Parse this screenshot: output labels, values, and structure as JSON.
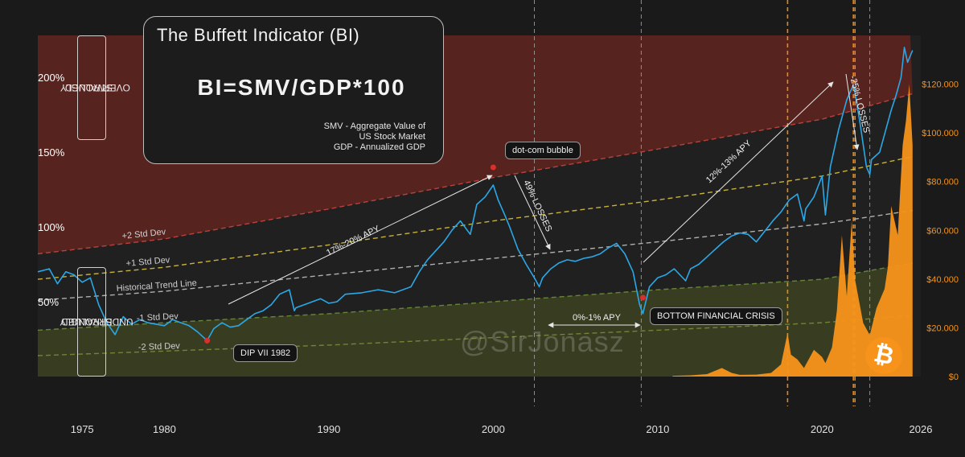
{
  "panel": {
    "title": "The Buffett Indicator (BI)",
    "formula": "BI=SMV/GDP*100",
    "definitions": [
      "SMV - Aggregate Value of",
      "US Stock Market",
      "GDP - Annualized GDP"
    ]
  },
  "zones": {
    "overvalued": [
      "STRONGLY",
      "OVERVALUED"
    ],
    "undervalued": [
      "STRONGLY",
      "UNDERVALUED"
    ]
  },
  "annotations": {
    "dotcom": "dot-com bubble",
    "dip1982": "DIP VII 1982",
    "bottom_crisis": "BOTTOM FINANCIAL CRISIS",
    "apy_80s_90s": "17%-20% APY",
    "losses_dotcom": "49% LOSSES",
    "apy_flat": "0%-1% APY",
    "apy_post_crisis": "12%-13% APY",
    "losses_2022": "-25% LOSSES"
  },
  "watermark": "@SirJonasz",
  "colors": {
    "background": "#1a1a1a",
    "overvalued_zone": "#5a2420",
    "undervalued_zone": "#3a3f22",
    "bi_line": "#2aa8e6",
    "btc_area": "#f7931a",
    "plus2": "#c8453f",
    "plus1": "#d9c23a",
    "trend": "#bfbfbf",
    "minus1": "#6a8f3a",
    "minus2": "#7a8a3a"
  },
  "chart_data": {
    "type": "line",
    "x_ticks": [
      "1975",
      "1980",
      "1990",
      "2000",
      "2010",
      "2020",
      "2026"
    ],
    "y_left_ticks": [
      "50%",
      "100%",
      "150%",
      "200%"
    ],
    "y_right_ticks": [
      "$0",
      "$20.000",
      "$40.000",
      "$60.000",
      "$80.000",
      "$100.000",
      "$120.000"
    ],
    "xlim": [
      1972.3,
      2026
    ],
    "ylim_left": [
      0,
      228
    ],
    "ylim_right": [
      0,
      140000
    ],
    "bands": [
      {
        "name": "+2 Std Dev",
        "values": [
          [
            1972.3,
            82
          ],
          [
            1980,
            92
          ],
          [
            1990,
            112
          ],
          [
            2000,
            133
          ],
          [
            2010,
            152
          ],
          [
            2020,
            172
          ],
          [
            2025.5,
            189
          ]
        ]
      },
      {
        "name": "+1 Std Dev",
        "values": [
          [
            1972.3,
            65
          ],
          [
            1980,
            73
          ],
          [
            1990,
            88
          ],
          [
            2000,
            104
          ],
          [
            2010,
            118
          ],
          [
            2020,
            134
          ],
          [
            2025.5,
            147
          ]
        ]
      },
      {
        "name": "Historical Trend Line",
        "values": [
          [
            1972.3,
            51
          ],
          [
            1980,
            57
          ],
          [
            1990,
            68
          ],
          [
            2000,
            79
          ],
          [
            2010,
            90
          ],
          [
            2020,
            102
          ],
          [
            2025.5,
            111
          ]
        ]
      },
      {
        "name": "-1 Std Dev",
        "values": [
          [
            1972.3,
            31
          ],
          [
            1980,
            36
          ],
          [
            1990,
            42
          ],
          [
            2000,
            50
          ],
          [
            2010,
            58
          ],
          [
            2020,
            65
          ],
          [
            2025.5,
            76
          ]
        ]
      },
      {
        "name": "-2 Std Dev",
        "values": [
          [
            1972.3,
            14
          ],
          [
            1980,
            17
          ],
          [
            1990,
            21
          ],
          [
            2000,
            26
          ],
          [
            2010,
            31
          ],
          [
            2020,
            36
          ],
          [
            2025.5,
            41
          ]
        ]
      }
    ],
    "series": [
      {
        "name": "",
        "axis": "left",
        "values": [
          [
            1972.3,
            70
          ],
          [
            1973,
            72
          ],
          [
            1973.5,
            62
          ],
          [
            1974,
            70
          ],
          [
            1974.5,
            68
          ],
          [
            1975,
            63
          ],
          [
            1975.5,
            66
          ],
          [
            1976,
            48
          ],
          [
            1976.5,
            36
          ],
          [
            1977,
            28
          ],
          [
            1977.5,
            40
          ],
          [
            1978,
            35
          ],
          [
            1978.5,
            38
          ],
          [
            1979,
            36
          ],
          [
            1979.5,
            35
          ],
          [
            1980,
            34
          ],
          [
            1980.5,
            38
          ],
          [
            1981,
            36
          ],
          [
            1981.5,
            34
          ],
          [
            1982,
            30
          ],
          [
            1982.6,
            24
          ],
          [
            1983,
            32
          ],
          [
            1983.5,
            36
          ],
          [
            1984,
            33
          ],
          [
            1984.5,
            34
          ],
          [
            1985,
            38
          ],
          [
            1985.5,
            42
          ],
          [
            1986,
            44
          ],
          [
            1986.5,
            48
          ],
          [
            1987,
            55
          ],
          [
            1987.6,
            58
          ],
          [
            1987.9,
            44
          ],
          [
            1988,
            46
          ],
          [
            1989,
            50
          ],
          [
            1989.5,
            52
          ],
          [
            1990,
            49
          ],
          [
            1990.5,
            50
          ],
          [
            1991,
            55
          ],
          [
            1992,
            56
          ],
          [
            1993,
            58
          ],
          [
            1994,
            56
          ],
          [
            1995,
            60
          ],
          [
            1995.5,
            70
          ],
          [
            1996,
            78
          ],
          [
            1997,
            90
          ],
          [
            1997.5,
            98
          ],
          [
            1998,
            104
          ],
          [
            1998.6,
            95
          ],
          [
            1999,
            115
          ],
          [
            1999.5,
            120
          ],
          [
            2000,
            128
          ],
          [
            2000.3,
            118
          ],
          [
            2000.7,
            108
          ],
          [
            2001,
            100
          ],
          [
            2001.5,
            85
          ],
          [
            2002,
            75
          ],
          [
            2002.5,
            66
          ],
          [
            2002.8,
            60
          ],
          [
            2003,
            66
          ],
          [
            2003.5,
            72
          ],
          [
            2004,
            76
          ],
          [
            2004.5,
            78
          ],
          [
            2005,
            77
          ],
          [
            2005.5,
            79
          ],
          [
            2006,
            80
          ],
          [
            2006.5,
            82
          ],
          [
            2007,
            86
          ],
          [
            2007.5,
            89
          ],
          [
            2008,
            82
          ],
          [
            2008.5,
            70
          ],
          [
            2008.9,
            48
          ],
          [
            2009.1,
            42
          ],
          [
            2009.5,
            60
          ],
          [
            2010,
            66
          ],
          [
            2010.5,
            68
          ],
          [
            2011,
            72
          ],
          [
            2011.7,
            64
          ],
          [
            2012,
            72
          ],
          [
            2012.5,
            75
          ],
          [
            2013,
            80
          ],
          [
            2014,
            90
          ],
          [
            2014.5,
            94
          ],
          [
            2015,
            96
          ],
          [
            2015.5,
            95
          ],
          [
            2016,
            90
          ],
          [
            2016.5,
            97
          ],
          [
            2017,
            104
          ],
          [
            2017.5,
            110
          ],
          [
            2018,
            118
          ],
          [
            2018.5,
            122
          ],
          [
            2018.9,
            104
          ],
          [
            2019,
            112
          ],
          [
            2019.5,
            120
          ],
          [
            2020,
            134
          ],
          [
            2020.2,
            108
          ],
          [
            2020.5,
            140
          ],
          [
            2021,
            165
          ],
          [
            2021.5,
            185
          ],
          [
            2021.9,
            195
          ],
          [
            2022,
            190
          ],
          [
            2022.3,
            170
          ],
          [
            2022.7,
            140
          ],
          [
            2022.9,
            135
          ],
          [
            2023,
            145
          ],
          [
            2023.5,
            150
          ],
          [
            2024,
            170
          ],
          [
            2024.2,
            178
          ],
          [
            2024.5,
            188
          ],
          [
            2024.8,
            200
          ],
          [
            2025,
            220
          ],
          [
            2025.2,
            210
          ],
          [
            2025.5,
            218
          ]
        ]
      },
      {
        "name": "",
        "axis": "right",
        "values": [
          [
            2010.9,
            300
          ],
          [
            2012,
            500
          ],
          [
            2013,
            1000
          ],
          [
            2013.9,
            3500
          ],
          [
            2014.5,
            1500
          ],
          [
            2015,
            700
          ],
          [
            2016,
            800
          ],
          [
            2016.9,
            1500
          ],
          [
            2017.5,
            5000
          ],
          [
            2017.9,
            18000
          ],
          [
            2018.1,
            9000
          ],
          [
            2018.5,
            7000
          ],
          [
            2018.9,
            3500
          ],
          [
            2019.5,
            11000
          ],
          [
            2020,
            8000
          ],
          [
            2020.2,
            5500
          ],
          [
            2020.6,
            12000
          ],
          [
            2020.9,
            27000
          ],
          [
            2021.2,
            58000
          ],
          [
            2021.5,
            33000
          ],
          [
            2021.8,
            64000
          ],
          [
            2022,
            40000
          ],
          [
            2022.5,
            22000
          ],
          [
            2022.9,
            17000
          ],
          [
            2023.3,
            28000
          ],
          [
            2023.8,
            36000
          ],
          [
            2024,
            45000
          ],
          [
            2024.2,
            70000
          ],
          [
            2024.6,
            58000
          ],
          [
            2024.9,
            95000
          ],
          [
            2025.1,
            105000
          ],
          [
            2025.3,
            120000
          ],
          [
            2025.5,
            95000
          ]
        ]
      }
    ],
    "vertical_markers": [
      {
        "x": 2002.5,
        "style": "dashed",
        "color": "#9a9a9a"
      },
      {
        "x": 2009.0,
        "style": "dashed",
        "color": "#9a9a9a"
      },
      {
        "x": 2017.9,
        "style": "dashed",
        "color": "#f7931a"
      },
      {
        "x": 2021.9,
        "style": "dashed",
        "color": "#f7931a"
      },
      {
        "x": 2022.0,
        "style": "dashed",
        "color": "#f7931a"
      },
      {
        "x": 2022.9,
        "style": "dashed",
        "color": "#9a9a9a"
      }
    ]
  }
}
